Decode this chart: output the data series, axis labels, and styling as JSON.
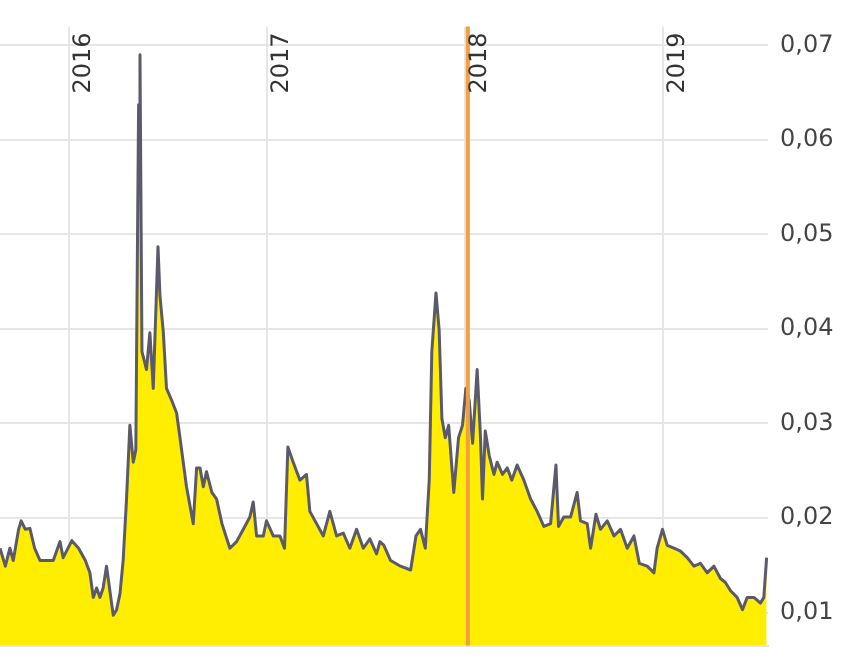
{
  "chart_data": {
    "type": "area",
    "x": [
      2015.576,
      2015.603,
      2015.626,
      2015.643,
      2015.67,
      2015.683,
      2015.704,
      2015.727,
      2015.751,
      2015.778,
      2015.845,
      2015.879,
      2015.895,
      2015.939,
      2015.973,
      2016.007,
      2016.03,
      2016.047,
      2016.064,
      2016.081,
      2016.097,
      2016.114,
      2016.131,
      2016.148,
      2016.165,
      2016.182,
      2016.198,
      2016.215,
      2016.232,
      2016.249,
      2016.262,
      2016.276,
      2016.283,
      2016.293,
      2016.316,
      2016.333,
      2016.35,
      2016.374,
      2016.384,
      2016.401,
      2016.417,
      2016.444,
      2016.468,
      2016.485,
      2016.518,
      2016.552,
      2016.569,
      2016.586,
      2016.603,
      2016.619,
      2016.646,
      2016.67,
      2016.697,
      2016.737,
      2016.771,
      2016.805,
      2016.838,
      2016.855,
      2016.872,
      2016.906,
      2016.922,
      2016.956,
      2016.99,
      2017.013,
      2017.03,
      2017.057,
      2017.091,
      2017.124,
      2017.141,
      2017.175,
      2017.209,
      2017.242,
      2017.276,
      2017.31,
      2017.343,
      2017.377,
      2017.411,
      2017.444,
      2017.478,
      2017.495,
      2017.515,
      2017.549,
      2017.599,
      2017.65,
      2017.677,
      2017.7,
      2017.724,
      2017.744,
      2017.757,
      2017.778,
      2017.794,
      2017.808,
      2017.825,
      2017.842,
      2017.868,
      2017.892,
      2017.912,
      2017.929,
      2017.946,
      2017.963,
      2017.986,
      2018.003,
      2018.013,
      2018.027,
      2018.047,
      2018.071,
      2018.087,
      2018.114,
      2018.138,
      2018.161,
      2018.188,
      2018.222,
      2018.256,
      2018.289,
      2018.323,
      2018.357,
      2018.384,
      2018.397,
      2018.424,
      2018.458,
      2018.491,
      2018.508,
      2018.542,
      2018.559,
      2018.586,
      2018.609,
      2018.643,
      2018.677,
      2018.71,
      2018.744,
      2018.778,
      2018.805,
      2018.845,
      2018.879,
      2018.895,
      2018.922,
      2018.946,
      2018.98,
      2019.013,
      2019.047,
      2019.081,
      2019.114,
      2019.148,
      2019.182,
      2019.215,
      2019.239,
      2019.266,
      2019.299,
      2019.326,
      2019.35,
      2019.384,
      2019.417,
      2019.434,
      2019.448
    ],
    "series": [
      {
        "color": "#ffee00",
        "values": [
          0.0168,
          0.0149,
          0.0168,
          0.0155,
          0.0188,
          0.0197,
          0.0188,
          0.0189,
          0.0168,
          0.0155,
          0.0155,
          0.0175,
          0.0158,
          0.0176,
          0.0168,
          0.0155,
          0.0142,
          0.0116,
          0.0126,
          0.0116,
          0.0126,
          0.0149,
          0.0123,
          0.0097,
          0.0103,
          0.012,
          0.0155,
          0.022,
          0.0298,
          0.0259,
          0.0272,
          0.0637,
          0.069,
          0.0376,
          0.0357,
          0.0396,
          0.0337,
          0.0487,
          0.0435,
          0.0396,
          0.0337,
          0.0324,
          0.0311,
          0.0285,
          0.0233,
          0.0194,
          0.0253,
          0.0253,
          0.0233,
          0.0249,
          0.0227,
          0.022,
          0.0194,
          0.0168,
          0.0175,
          0.0188,
          0.0201,
          0.0217,
          0.0181,
          0.0181,
          0.0197,
          0.0181,
          0.0181,
          0.0168,
          0.0275,
          0.0259,
          0.024,
          0.0246,
          0.0207,
          0.0194,
          0.0181,
          0.0207,
          0.0181,
          0.0184,
          0.0168,
          0.0188,
          0.0168,
          0.0178,
          0.0162,
          0.0175,
          0.0171,
          0.0155,
          0.0149,
          0.0145,
          0.0181,
          0.0188,
          0.0168,
          0.024,
          0.0376,
          0.0438,
          0.0399,
          0.0305,
          0.0285,
          0.0298,
          0.0227,
          0.0285,
          0.0298,
          0.0337,
          0.0324,
          0.0279,
          0.0357,
          0.0285,
          0.022,
          0.0292,
          0.0266,
          0.0246,
          0.0259,
          0.0246,
          0.0253,
          0.024,
          0.0256,
          0.024,
          0.022,
          0.0207,
          0.0191,
          0.0194,
          0.0256,
          0.0191,
          0.0201,
          0.0201,
          0.0227,
          0.0197,
          0.0194,
          0.0168,
          0.0204,
          0.0188,
          0.0197,
          0.0181,
          0.0188,
          0.0168,
          0.0181,
          0.0152,
          0.0149,
          0.0142,
          0.0168,
          0.0188,
          0.0171,
          0.0168,
          0.0165,
          0.0158,
          0.0149,
          0.0152,
          0.0142,
          0.0149,
          0.0136,
          0.0132,
          0.0123,
          0.0116,
          0.0103,
          0.0116,
          0.0116,
          0.011,
          0.0116,
          0.0158
        ]
      }
    ],
    "xlim": [
      2015.576,
      2019.455
    ],
    "xticks": [
      2016,
      2017,
      2018,
      2019
    ],
    "ylim": [
      0.0065,
      0.072
    ],
    "yticks": [
      {
        "value": 0.01,
        "label": "0,01"
      },
      {
        "value": 0.02,
        "label": "0,02"
      },
      {
        "value": 0.03,
        "label": "0,03"
      },
      {
        "value": 0.04,
        "label": "0,04"
      },
      {
        "value": 0.05,
        "label": "0,05"
      },
      {
        "value": 0.06,
        "label": "0,06"
      },
      {
        "value": 0.07,
        "label": "0,07"
      }
    ],
    "ref_lines": [
      {
        "axis": "x",
        "value": 2017.939,
        "color": "#f0a040"
      }
    ],
    "grid": true,
    "legend": false
  }
}
